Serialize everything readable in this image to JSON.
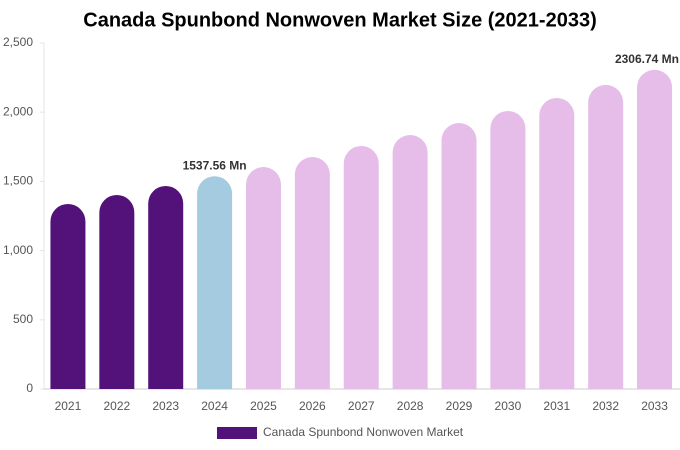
{
  "chart_data": {
    "type": "bar",
    "title": "Canada Spunbond Nonwoven Market Size (2021-2033)",
    "categories": [
      "2021",
      "2022",
      "2023",
      "2024",
      "2025",
      "2026",
      "2027",
      "2028",
      "2029",
      "2030",
      "2031",
      "2032",
      "2033"
    ],
    "series": [
      {
        "name": "Canada Spunbond Nonwoven Market",
        "color": "#52127a",
        "colors": [
          "#52127a",
          "#52127a",
          "#52127a",
          "#a5cbe0",
          "#e6bde9",
          "#e6bde9",
          "#e6bde9",
          "#e6bde9",
          "#e6bde9",
          "#e6bde9",
          "#e6bde9",
          "#e6bde9",
          "#e6bde9"
        ],
        "values": [
          1337,
          1402,
          1467,
          1537.56,
          1604,
          1676,
          1756,
          1835,
          1922,
          2009,
          2103,
          2197,
          2306.74
        ],
        "value_labels": [
          null,
          null,
          null,
          "1537.56 Mn",
          null,
          null,
          null,
          null,
          null,
          null,
          null,
          null,
          "2306.74 Mn"
        ]
      }
    ],
    "ylim": [
      0,
      2500
    ],
    "yticks": [
      0,
      500,
      {
        "value": 1000,
        "label": "1,000"
      },
      {
        "value": 1500,
        "label": "1,500"
      },
      {
        "value": 2000,
        "label": "2,000"
      },
      {
        "value": 2500,
        "label": "2,500"
      }
    ],
    "grid": false
  }
}
